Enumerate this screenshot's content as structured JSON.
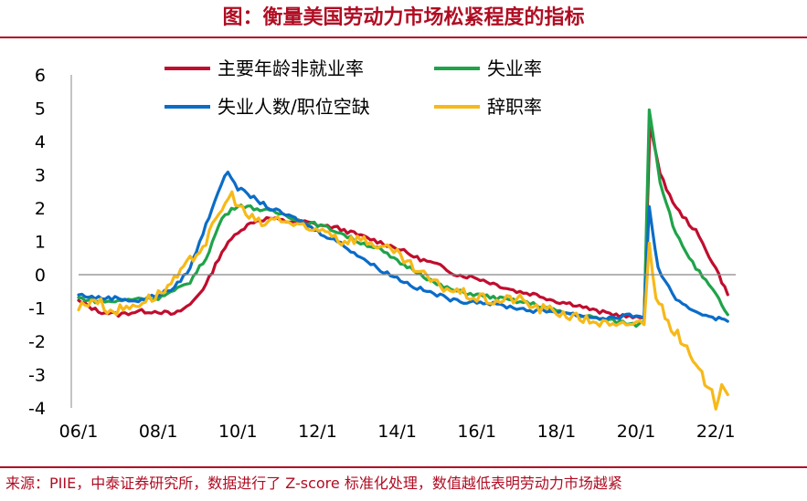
{
  "header": {
    "title": "图：衡量美国劳动力市场松紧程度的指标"
  },
  "footer": {
    "source": "来源：PIIE，中泰证券研究所，数据进行了 Z-score 标准化处理，数值越低表明劳动力市场越紧"
  },
  "chart_data": {
    "type": "line",
    "title": "图：衡量美国劳动力市场松紧程度的指标",
    "xlabel": "",
    "ylabel": "",
    "x_ticks": [
      "06/1",
      "08/1",
      "10/1",
      "12/1",
      "14/1",
      "16/1",
      "18/1",
      "20/1",
      "22/1"
    ],
    "x_tick_years": [
      2006,
      2008,
      2010,
      2012,
      2014,
      2016,
      2018,
      2020,
      2022
    ],
    "xlim": [
      2006,
      2022.5
    ],
    "ylim": [
      -4,
      6
    ],
    "y_ticks": [
      "6",
      "5",
      "4",
      "3",
      "2",
      "1",
      "0",
      "-1",
      "-2",
      "-3",
      "-4"
    ],
    "y_tick_values": [
      6,
      5,
      4,
      3,
      2,
      1,
      0,
      -1,
      -2,
      -3,
      -4
    ],
    "grid": false,
    "legend_position": "top",
    "series": [
      {
        "name": "主要年龄非就业率",
        "color": "#c00d2e",
        "points": [
          [
            2006,
            -0.8
          ],
          [
            2006.5,
            -1.1
          ],
          [
            2007,
            -1.2
          ],
          [
            2007.5,
            -1.1
          ],
          [
            2008,
            -1.1
          ],
          [
            2008.4,
            -1.2
          ],
          [
            2008.8,
            -0.9
          ],
          [
            2009.2,
            -0.3
          ],
          [
            2009.6,
            0.7
          ],
          [
            2010,
            1.3
          ],
          [
            2010.4,
            1.6
          ],
          [
            2010.8,
            1.7
          ],
          [
            2011.2,
            1.6
          ],
          [
            2011.6,
            1.6
          ],
          [
            2012,
            1.5
          ],
          [
            2012.5,
            1.4
          ],
          [
            2013,
            1.2
          ],
          [
            2013.5,
            1.0
          ],
          [
            2014,
            0.8
          ],
          [
            2014.5,
            0.5
          ],
          [
            2015,
            0.3
          ],
          [
            2015.5,
            0.0
          ],
          [
            2016,
            -0.1
          ],
          [
            2016.5,
            -0.3
          ],
          [
            2017,
            -0.5
          ],
          [
            2017.5,
            -0.6
          ],
          [
            2018,
            -0.8
          ],
          [
            2018.5,
            -0.9
          ],
          [
            2019,
            -1.1
          ],
          [
            2019.5,
            -1.2
          ],
          [
            2020,
            -1.3
          ],
          [
            2020.2,
            -1.3
          ],
          [
            2020.35,
            4.6
          ],
          [
            2020.6,
            3.0
          ],
          [
            2021,
            2.0
          ],
          [
            2021.5,
            1.3
          ],
          [
            2022,
            0.2
          ],
          [
            2022.3,
            -0.6
          ]
        ]
      },
      {
        "name": "失业率",
        "color": "#1fa34a",
        "points": [
          [
            2006,
            -0.7
          ],
          [
            2006.5,
            -0.8
          ],
          [
            2007,
            -0.8
          ],
          [
            2007.5,
            -0.7
          ],
          [
            2008,
            -0.7
          ],
          [
            2008.4,
            -0.5
          ],
          [
            2008.8,
            -0.2
          ],
          [
            2009.2,
            0.5
          ],
          [
            2009.6,
            1.7
          ],
          [
            2010,
            2.1
          ],
          [
            2010.4,
            2.0
          ],
          [
            2010.8,
            1.9
          ],
          [
            2011.2,
            1.8
          ],
          [
            2011.6,
            1.6
          ],
          [
            2012,
            1.5
          ],
          [
            2012.5,
            1.3
          ],
          [
            2013,
            1.0
          ],
          [
            2013.5,
            0.8
          ],
          [
            2014,
            0.4
          ],
          [
            2014.5,
            0.1
          ],
          [
            2015,
            -0.3
          ],
          [
            2015.5,
            -0.5
          ],
          [
            2016,
            -0.6
          ],
          [
            2016.5,
            -0.7
          ],
          [
            2017,
            -0.8
          ],
          [
            2017.5,
            -0.9
          ],
          [
            2018,
            -1.1
          ],
          [
            2018.5,
            -1.2
          ],
          [
            2019,
            -1.3
          ],
          [
            2019.5,
            -1.4
          ],
          [
            2020,
            -1.5
          ],
          [
            2020.2,
            -1.4
          ],
          [
            2020.33,
            5.0
          ],
          [
            2020.6,
            2.8
          ],
          [
            2021,
            1.2
          ],
          [
            2021.5,
            0.2
          ],
          [
            2022,
            -0.6
          ],
          [
            2022.3,
            -1.2
          ]
        ]
      },
      {
        "name": "失业人数/职位空缺",
        "color": "#0b6cc8",
        "points": [
          [
            2006,
            -0.6
          ],
          [
            2006.5,
            -0.7
          ],
          [
            2007,
            -0.7
          ],
          [
            2007.5,
            -0.8
          ],
          [
            2008,
            -0.6
          ],
          [
            2008.4,
            -0.4
          ],
          [
            2008.8,
            0.2
          ],
          [
            2009.2,
            1.5
          ],
          [
            2009.5,
            2.5
          ],
          [
            2009.75,
            3.1
          ],
          [
            2010,
            2.6
          ],
          [
            2010.4,
            2.3
          ],
          [
            2010.8,
            2.0
          ],
          [
            2011.2,
            1.8
          ],
          [
            2011.6,
            1.6
          ],
          [
            2012,
            1.3
          ],
          [
            2012.5,
            1.0
          ],
          [
            2013,
            0.6
          ],
          [
            2013.5,
            0.2
          ],
          [
            2014,
            -0.1
          ],
          [
            2014.5,
            -0.4
          ],
          [
            2015,
            -0.6
          ],
          [
            2015.5,
            -0.8
          ],
          [
            2016,
            -0.8
          ],
          [
            2016.5,
            -0.9
          ],
          [
            2017,
            -1.0
          ],
          [
            2017.5,
            -1.1
          ],
          [
            2018,
            -1.1
          ],
          [
            2018.5,
            -1.2
          ],
          [
            2019,
            -1.3
          ],
          [
            2019.5,
            -1.3
          ],
          [
            2020,
            -1.2
          ],
          [
            2020.2,
            -1.3
          ],
          [
            2020.33,
            2.0
          ],
          [
            2020.55,
            0.2
          ],
          [
            2021,
            -0.8
          ],
          [
            2021.5,
            -1.1
          ],
          [
            2022,
            -1.3
          ],
          [
            2022.3,
            -1.4
          ]
        ]
      },
      {
        "name": "辞职率",
        "color": "#f7b919",
        "points": [
          [
            2006,
            -1.0
          ],
          [
            2006.4,
            -0.7
          ],
          [
            2006.8,
            -1.1
          ],
          [
            2007.2,
            -1.0
          ],
          [
            2007.6,
            -0.8
          ],
          [
            2008,
            -0.6
          ],
          [
            2008.4,
            -0.2
          ],
          [
            2008.8,
            0.4
          ],
          [
            2009.2,
            1.0
          ],
          [
            2009.6,
            2.0
          ],
          [
            2009.85,
            2.4
          ],
          [
            2010.2,
            1.8
          ],
          [
            2010.6,
            1.5
          ],
          [
            2011,
            1.7
          ],
          [
            2011.4,
            1.5
          ],
          [
            2011.8,
            1.3
          ],
          [
            2012.2,
            1.4
          ],
          [
            2012.6,
            1.0
          ],
          [
            2013,
            1.1
          ],
          [
            2013.5,
            0.9
          ],
          [
            2014,
            0.6
          ],
          [
            2014.5,
            0.1
          ],
          [
            2015,
            -0.3
          ],
          [
            2015.5,
            -0.5
          ],
          [
            2016,
            -0.7
          ],
          [
            2016.5,
            -0.8
          ],
          [
            2017,
            -0.7
          ],
          [
            2017.5,
            -1.0
          ],
          [
            2018,
            -1.1
          ],
          [
            2018.5,
            -1.3
          ],
          [
            2019,
            -1.4
          ],
          [
            2019.5,
            -1.6
          ],
          [
            2020,
            -1.4
          ],
          [
            2020.2,
            -1.5
          ],
          [
            2020.33,
            0.9
          ],
          [
            2020.5,
            -0.6
          ],
          [
            2020.8,
            -1.4
          ],
          [
            2021.2,
            -2.1
          ],
          [
            2021.5,
            -2.8
          ],
          [
            2021.8,
            -3.3
          ],
          [
            2022,
            -3.9
          ],
          [
            2022.15,
            -3.3
          ],
          [
            2022.3,
            -3.6
          ]
        ]
      }
    ]
  }
}
